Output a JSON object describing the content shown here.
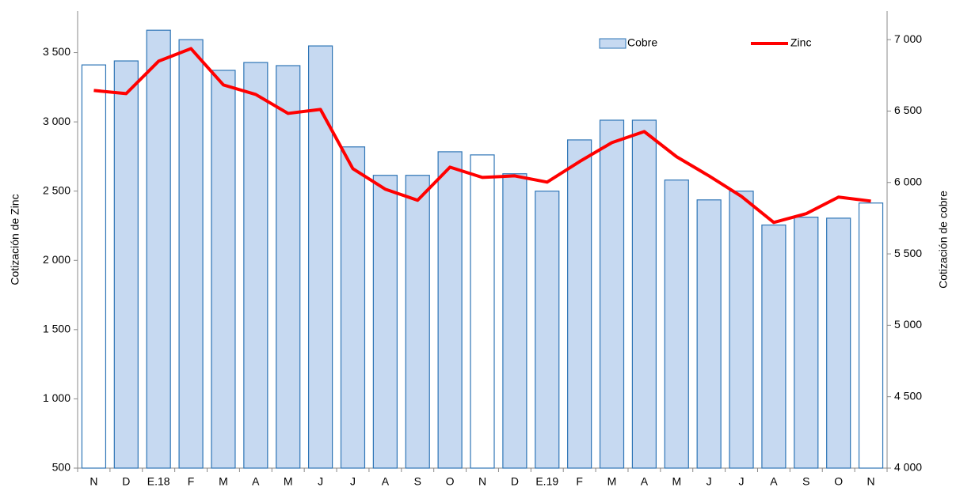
{
  "chart_data": {
    "type": "bar_line",
    "ylabel": "Cotización de Zinc",
    "y2label": "Cotización de cobre",
    "categories": [
      "N",
      "D",
      "E.18",
      "F",
      "M",
      "A",
      "M",
      "J",
      "J",
      "A",
      "S",
      "O",
      "N",
      "D",
      "E.19",
      "F",
      "M",
      "A",
      "M",
      "J",
      "J",
      "A",
      "S",
      "O",
      "N"
    ],
    "ylim": [
      500,
      3800
    ],
    "yticks": [
      500,
      {
        "value": 1000,
        "label": "1 000"
      },
      {
        "value": 1500,
        "label": "1 500"
      },
      {
        "value": 2000,
        "label": "2 000"
      },
      {
        "value": 2500,
        "label": "2 500"
      },
      {
        "value": 3000,
        "label": "3 000"
      },
      {
        "value": 3500,
        "label": "3 500"
      }
    ],
    "y2lim": [
      4000,
      7200
    ],
    "y2ticks": [
      {
        "value": 4000,
        "label": "4 000"
      },
      {
        "value": 4500,
        "label": "4 500"
      },
      {
        "value": 5000,
        "label": "5 000"
      },
      {
        "value": 5500,
        "label": "5 500"
      },
      {
        "value": 6000,
        "label": "6 000"
      },
      {
        "value": 6500,
        "label": "6 500"
      },
      {
        "value": 7000,
        "label": "7 000"
      }
    ],
    "legend": "upper right",
    "series": [
      {
        "name": "Cobre",
        "type": "bar",
        "axis": "y2",
        "color": "#c6d9f1",
        "edge_color": "#2e75b6",
        "colors": [
          "#ffffff",
          "#c6d9f1",
          "#c6d9f1",
          "#c6d9f1",
          "#c6d9f1",
          "#c6d9f1",
          "#c6d9f1",
          "#c6d9f1",
          "#c6d9f1",
          "#c6d9f1",
          "#c6d9f1",
          "#c6d9f1",
          "#ffffff",
          "#c6d9f1",
          "#c6d9f1",
          "#c6d9f1",
          "#c6d9f1",
          "#c6d9f1",
          "#c6d9f1",
          "#c6d9f1",
          "#c6d9f1",
          "#c6d9f1",
          "#c6d9f1",
          "#c6d9f1",
          "#ffffff"
        ],
        "values": [
          6823,
          6851,
          7066,
          7000,
          6785,
          6840,
          6818,
          6956,
          6249,
          6050,
          6050,
          6215,
          6193,
          6061,
          5939,
          6298,
          6436,
          6436,
          6017,
          5878,
          5939,
          5702,
          5757,
          5750,
          5856
        ]
      },
      {
        "name": "Zinc",
        "type": "line",
        "axis": "y",
        "color": "#ff0000",
        "values": [
          3227,
          3204,
          3438,
          3529,
          3267,
          3198,
          3061,
          3090,
          2662,
          2514,
          2434,
          2673,
          2599,
          2610,
          2565,
          2713,
          2850,
          2930,
          2748,
          2610,
          2462,
          2274,
          2337,
          2457,
          2428
        ]
      }
    ]
  }
}
